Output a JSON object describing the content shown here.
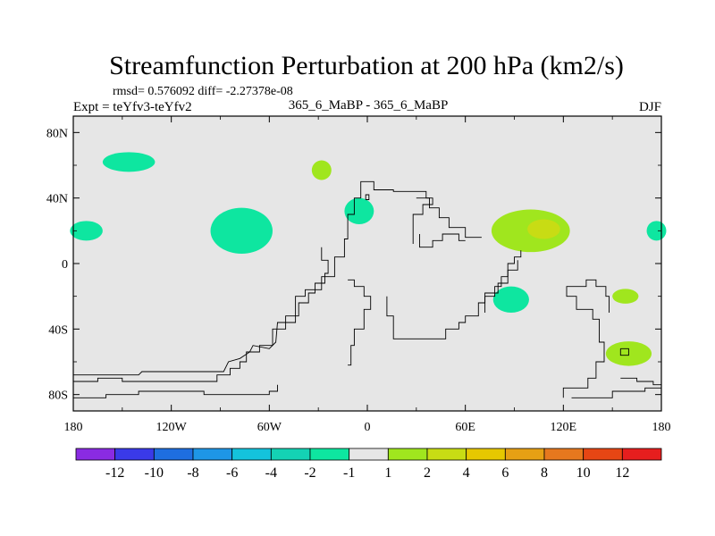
{
  "chart_data": {
    "type": "contour_map",
    "title": "Streamfunction Perturbation at 200 hPa (km2/s)",
    "stats": "rmsd= 0.576092 diff= -2.27378e-08",
    "left_label": "Expt = teYfv3-teYfv2",
    "center_label": "365_6_MaBP - 365_6_MaBP",
    "right_label": "DJF",
    "x_ticks": [
      "180",
      "120W",
      "60W",
      "0",
      "60E",
      "120E",
      "180"
    ],
    "x_tick_values": [
      -180,
      -120,
      -60,
      0,
      60,
      120,
      180
    ],
    "y_ticks": [
      "80N",
      "40N",
      "0",
      "40S",
      "80S"
    ],
    "y_tick_values": [
      80,
      40,
      0,
      -40,
      -80
    ],
    "xlim": [
      -180,
      180
    ],
    "ylim": [
      -90,
      90
    ],
    "background_color": "#e6e6e6",
    "colorbar": {
      "colors": [
        "#8a2be2",
        "#3a3ae8",
        "#1e6ee0",
        "#1e96e6",
        "#14c3dc",
        "#14d2b4",
        "#0ee6a0",
        "#e6e6e6",
        "#a0e61e",
        "#c8dc14",
        "#e6c800",
        "#e6a014",
        "#e6781e",
        "#e64614",
        "#e61e1e"
      ],
      "labels": [
        "-12",
        "-10",
        "-8",
        "-6",
        "-4",
        "-2",
        "-1",
        "1",
        "2",
        "4",
        "6",
        "8",
        "10",
        "12"
      ]
    },
    "anomalies": [
      {
        "name": "blob-150w-65n",
        "lon": -146,
        "lat": 62,
        "rlon": 16,
        "rlat": 6,
        "color": "#0ee6a0"
      },
      {
        "name": "blob-175w-20n",
        "lon": -172,
        "lat": 20,
        "rlon": 10,
        "rlat": 6,
        "color": "#0ee6a0"
      },
      {
        "name": "blob-77w-20n",
        "lon": -77,
        "lat": 20,
        "rlon": 19,
        "rlat": 14,
        "color": "#0ee6a0"
      },
      {
        "name": "blob-28w-57n",
        "lon": -28,
        "lat": 57,
        "rlon": 6,
        "rlat": 6,
        "color": "#a0e61e"
      },
      {
        "name": "blob-5w-32n",
        "lon": -5,
        "lat": 32,
        "rlon": 9,
        "rlat": 8,
        "color": "#0ee6a0"
      },
      {
        "name": "blob-100e-20n",
        "lon": 100,
        "lat": 20,
        "rlon": 24,
        "rlat": 13,
        "color": "#a0e61e"
      },
      {
        "name": "blob-108e-21n",
        "lon": 108,
        "lat": 21,
        "rlon": 10,
        "rlat": 6,
        "color": "#c8dc14"
      },
      {
        "name": "blob-178e-20n",
        "lon": 177,
        "lat": 20,
        "rlon": 6,
        "rlat": 6,
        "color": "#0ee6a0"
      },
      {
        "name": "blob-88e-22s",
        "lon": 88,
        "lat": -22,
        "rlon": 11,
        "rlat": 8,
        "color": "#0ee6a0"
      },
      {
        "name": "blob-158e-20s",
        "lon": 158,
        "lat": -20,
        "rlon": 8,
        "rlat": 4.5,
        "color": "#a0e61e"
      },
      {
        "name": "blob-160e-55s",
        "lon": 160,
        "lat": -55,
        "rlon": 14,
        "rlat": 7.5,
        "color": "#a0e61e"
      }
    ],
    "coastlines": [
      {
        "name": "coastline-north-america",
        "points": [
          [
            -180,
            -68
          ],
          [
            -140,
            -68
          ],
          [
            -138,
            -66
          ],
          [
            -88,
            -66
          ],
          [
            -85,
            -60
          ],
          [
            -78,
            -58
          ],
          [
            -72,
            -54
          ],
          [
            -70,
            -50
          ],
          [
            -60,
            -52
          ],
          [
            -56,
            -48
          ],
          [
            -55,
            -36
          ],
          [
            -44,
            -36
          ],
          [
            -44,
            -20
          ],
          [
            -38,
            -20
          ],
          [
            -38,
            -16
          ],
          [
            -28,
            -16
          ],
          [
            -28,
            -8
          ],
          [
            -20,
            -8
          ],
          [
            -20,
            4
          ],
          [
            -14,
            4
          ],
          [
            -14,
            15
          ],
          [
            -12,
            15
          ],
          [
            -12,
            30
          ],
          [
            -8,
            30
          ],
          [
            -8,
            40
          ],
          [
            -4,
            40
          ],
          [
            -4,
            50
          ],
          [
            4,
            50
          ],
          [
            4,
            45
          ],
          [
            16,
            45
          ],
          [
            16,
            44
          ],
          [
            36,
            44
          ],
          [
            36,
            40
          ],
          [
            40,
            40
          ],
          [
            40,
            36
          ],
          [
            34,
            36
          ],
          [
            34,
            30
          ],
          [
            28,
            30
          ],
          [
            28,
            20
          ],
          [
            28,
            12
          ]
        ]
      },
      {
        "name": "coastline-north-america-inner",
        "points": [
          [
            -180,
            -72
          ],
          [
            -165,
            -72
          ],
          [
            -165,
            -70
          ],
          [
            -150,
            -70
          ],
          [
            -150,
            -72
          ],
          [
            -92,
            -72
          ],
          [
            -92,
            -68
          ],
          [
            -84,
            -68
          ],
          [
            -84,
            -64
          ],
          [
            -78,
            -64
          ],
          [
            -78,
            -60
          ],
          [
            -74,
            -60
          ],
          [
            -74,
            -54
          ],
          [
            -66,
            -54
          ],
          [
            -66,
            -50
          ],
          [
            -58,
            -50
          ],
          [
            -58,
            -40
          ],
          [
            -50,
            -40
          ],
          [
            -50,
            -32
          ],
          [
            -42,
            -32
          ],
          [
            -42,
            -24
          ],
          [
            -36,
            -24
          ],
          [
            -36,
            -18
          ],
          [
            -32,
            -18
          ],
          [
            -32,
            -12
          ],
          [
            -26,
            -12
          ],
          [
            -26,
            -6
          ],
          [
            -24,
            -6
          ],
          [
            -24,
            2
          ],
          [
            -28,
            2
          ],
          [
            -28,
            10
          ]
        ]
      },
      {
        "name": "coastline-south-america",
        "points": [
          [
            -180,
            -82
          ],
          [
            -160,
            -82
          ],
          [
            -160,
            -80
          ],
          [
            -140,
            -80
          ],
          [
            -140,
            -78
          ],
          [
            -100,
            -78
          ],
          [
            -100,
            -80
          ],
          [
            -60,
            -80
          ],
          [
            -60,
            -78
          ],
          [
            -55,
            -78
          ],
          [
            -55,
            -74
          ]
        ]
      },
      {
        "name": "coastline-europe-africa",
        "points": [
          [
            -12,
            -10
          ],
          [
            -8,
            -10
          ],
          [
            -8,
            -14
          ],
          [
            -2,
            -14
          ],
          [
            -2,
            -20
          ],
          [
            2,
            -20
          ],
          [
            2,
            -28
          ],
          [
            -2,
            -28
          ],
          [
            -2,
            -40
          ],
          [
            -8,
            -40
          ],
          [
            -8,
            -50
          ],
          [
            -10,
            -50
          ],
          [
            -10,
            -62
          ],
          [
            -12,
            -62
          ]
        ]
      },
      {
        "name": "coastline-asia",
        "points": [
          [
            12,
            -20
          ],
          [
            12,
            -32
          ],
          [
            16,
            -32
          ],
          [
            16,
            -46
          ],
          [
            48,
            -46
          ],
          [
            48,
            -40
          ],
          [
            56,
            -40
          ],
          [
            56,
            -36
          ],
          [
            60,
            -36
          ],
          [
            60,
            -32
          ],
          [
            68,
            -32
          ],
          [
            68,
            -24
          ],
          [
            72,
            -24
          ],
          [
            72,
            -20
          ],
          [
            78,
            -20
          ],
          [
            78,
            -14
          ],
          [
            82,
            -14
          ],
          [
            82,
            -8
          ],
          [
            86,
            -8
          ],
          [
            86,
            0
          ],
          [
            90,
            0
          ],
          [
            90,
            4
          ],
          [
            94,
            4
          ],
          [
            94,
            8
          ]
        ]
      },
      {
        "name": "coastline-asia-north",
        "points": [
          [
            30,
            40
          ],
          [
            38,
            40
          ],
          [
            38,
            34
          ],
          [
            44,
            34
          ],
          [
            44,
            28
          ],
          [
            50,
            28
          ],
          [
            50,
            22
          ],
          [
            60,
            22
          ],
          [
            60,
            16
          ],
          [
            70,
            16
          ]
        ]
      },
      {
        "name": "coastline-east-asia",
        "points": [
          [
            32,
            18
          ],
          [
            32,
            10
          ],
          [
            40,
            10
          ],
          [
            40,
            14
          ],
          [
            46,
            14
          ],
          [
            46,
            18
          ],
          [
            56,
            18
          ],
          [
            56,
            14
          ],
          [
            60,
            14
          ]
        ]
      },
      {
        "name": "coastline-india",
        "points": [
          [
            72,
            -30
          ],
          [
            72,
            -18
          ],
          [
            80,
            -18
          ],
          [
            80,
            -12
          ],
          [
            86,
            -12
          ],
          [
            86,
            -4
          ],
          [
            92,
            -4
          ],
          [
            92,
            2
          ]
        ]
      },
      {
        "name": "coastline-australia",
        "points": [
          [
            120,
            -82
          ],
          [
            120,
            -76
          ],
          [
            135,
            -76
          ],
          [
            135,
            -70
          ],
          [
            140,
            -70
          ],
          [
            140,
            -60
          ],
          [
            145,
            -60
          ],
          [
            145,
            -48
          ],
          [
            142,
            -48
          ],
          [
            142,
            -34
          ],
          [
            138,
            -34
          ],
          [
            138,
            -28
          ],
          [
            128,
            -28
          ],
          [
            128,
            -20
          ],
          [
            122,
            -20
          ],
          [
            122,
            -14
          ],
          [
            134,
            -14
          ],
          [
            134,
            -10
          ],
          [
            140,
            -10
          ],
          [
            140,
            -14
          ],
          [
            146,
            -14
          ],
          [
            146,
            -20
          ],
          [
            148,
            -20
          ],
          [
            148,
            -30
          ]
        ]
      },
      {
        "name": "coastline-antarctic-east",
        "points": [
          [
            125,
            -82
          ],
          [
            150,
            -82
          ],
          [
            150,
            -78
          ],
          [
            170,
            -78
          ],
          [
            170,
            -76
          ],
          [
            180,
            -76
          ]
        ]
      },
      {
        "name": "coastline-antarctic-east-2",
        "points": [
          [
            155,
            -70
          ],
          [
            165,
            -70
          ],
          [
            165,
            -72
          ],
          [
            175,
            -72
          ],
          [
            175,
            -74
          ],
          [
            180,
            -74
          ]
        ]
      },
      {
        "name": "coastline-island-nz",
        "points": [
          [
            155,
            -52
          ],
          [
            160,
            -52
          ],
          [
            160,
            -56
          ],
          [
            155,
            -56
          ],
          [
            155,
            -52
          ]
        ]
      },
      {
        "name": "coastline-island-north",
        "points": [
          [
            -1,
            39
          ],
          [
            -1,
            42
          ],
          [
            1,
            42
          ],
          [
            1,
            39
          ],
          [
            -1,
            39
          ]
        ]
      }
    ]
  }
}
